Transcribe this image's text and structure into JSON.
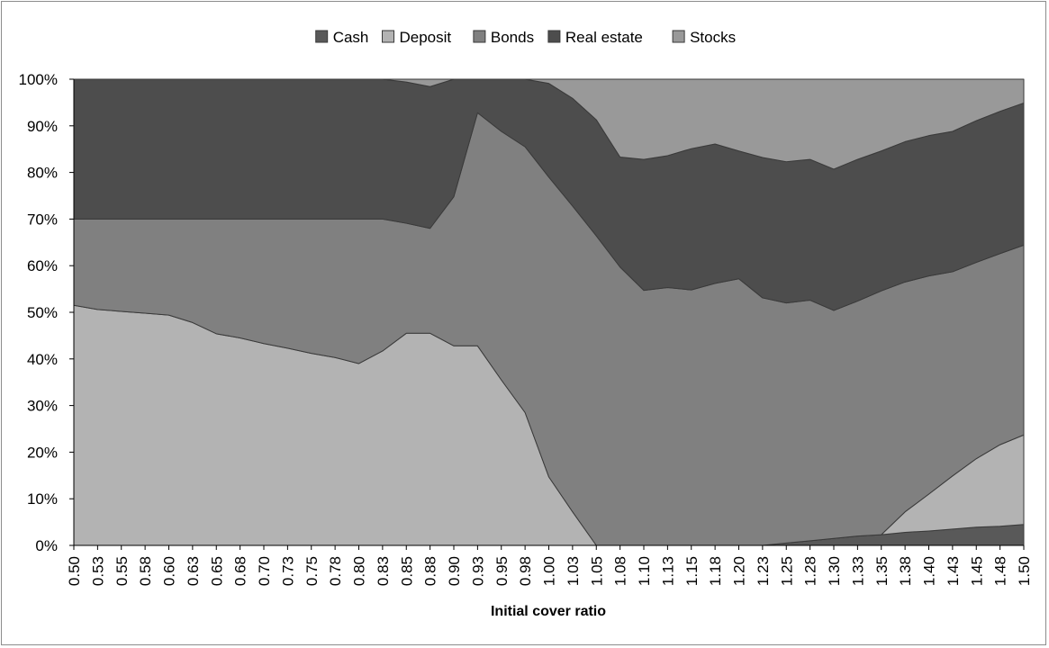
{
  "chart_data": {
    "type": "area",
    "stacked": "percent",
    "title": "",
    "xlabel": "Initial cover ratio",
    "ylabel": "",
    "ylim": [
      0,
      100
    ],
    "yticks": [
      "0%",
      "10%",
      "20%",
      "30%",
      "40%",
      "50%",
      "60%",
      "70%",
      "80%",
      "90%",
      "100%"
    ],
    "legend_position": "top",
    "grid": false,
    "x": [
      "0.50",
      "0.53",
      "0.55",
      "0.58",
      "0.60",
      "0.63",
      "0.65",
      "0.68",
      "0.70",
      "0.73",
      "0.75",
      "0.78",
      "0.80",
      "0.83",
      "0.85",
      "0.88",
      "0.90",
      "0.93",
      "0.95",
      "0.98",
      "1.00",
      "1.03",
      "1.05",
      "1.08",
      "1.10",
      "1.13",
      "1.15",
      "1.18",
      "1.20",
      "1.23",
      "1.25",
      "1.28",
      "1.30",
      "1.33",
      "1.35",
      "1.38",
      "1.40",
      "1.43",
      "1.45",
      "1.48",
      "1.50"
    ],
    "series": [
      {
        "name": "Cash",
        "color": "#595959",
        "values": [
          0,
          0,
          0,
          0,
          0,
          0,
          0,
          0,
          0,
          0,
          0,
          0,
          0,
          0,
          0,
          0,
          0,
          0,
          0,
          0,
          0,
          0,
          0,
          0,
          0,
          0,
          0,
          0,
          0,
          0,
          0.5,
          1,
          1.5,
          2,
          2.3,
          2.8,
          3.1,
          3.5,
          3.9,
          4.1,
          4.5
        ]
      },
      {
        "name": "Deposit",
        "color": "#b3b3b3",
        "values": [
          51.5,
          50.6,
          50.2,
          49.8,
          49.4,
          47.8,
          45.4,
          44.5,
          43.3,
          42.3,
          41.2,
          40.3,
          39,
          41.7,
          45.5,
          45.5,
          42.8,
          42.8,
          35.5,
          28.5,
          14.7,
          7.2,
          0,
          0,
          0,
          0,
          0,
          0,
          0,
          0,
          0,
          0,
          0,
          0,
          0,
          4.4,
          7.9,
          11.4,
          14.7,
          17.5,
          19.2
        ]
      },
      {
        "name": "Bonds",
        "color": "#808080",
        "values": [
          18.5,
          19.4,
          19.8,
          20.2,
          20.6,
          22.2,
          24.6,
          25.5,
          26.7,
          27.7,
          28.8,
          29.7,
          31,
          28.3,
          23.6,
          22.5,
          32,
          50,
          53.3,
          57,
          64.3,
          65.6,
          66.4,
          59.7,
          54.7,
          55.3,
          54.8,
          56.2,
          57.2,
          53.1,
          51.5,
          51.6,
          48.9,
          50.4,
          52.3,
          49.3,
          46.8,
          43.8,
          42.1,
          41,
          40.7
        ]
      },
      {
        "name": "Real estate",
        "color": "#4d4d4d",
        "values": [
          30,
          30,
          30,
          30,
          30,
          30,
          30,
          30,
          30,
          30,
          30,
          30,
          30,
          30,
          30.3,
          30.4,
          25.2,
          7.2,
          11.2,
          14.5,
          20.1,
          23.1,
          24.9,
          23.6,
          28.1,
          28.3,
          30.3,
          29.9,
          27.4,
          30.1,
          30.3,
          30.2,
          30.3,
          30.4,
          30,
          30.1,
          30.1,
          30.1,
          30.4,
          30.5,
          30.5
        ]
      },
      {
        "name": "Stocks",
        "color": "#999999",
        "values": [
          0,
          0,
          0,
          0,
          0,
          0,
          0,
          0,
          0,
          0,
          0,
          0,
          0,
          0,
          0.6,
          1.6,
          0,
          0,
          0,
          0,
          0.9,
          4.1,
          8.7,
          16.7,
          17.2,
          16.4,
          14.9,
          13.9,
          15.4,
          16.8,
          17.7,
          17.2,
          19.3,
          17.2,
          15.4,
          13.4,
          12.1,
          11.2,
          8.9,
          6.9,
          5.1
        ]
      }
    ]
  }
}
